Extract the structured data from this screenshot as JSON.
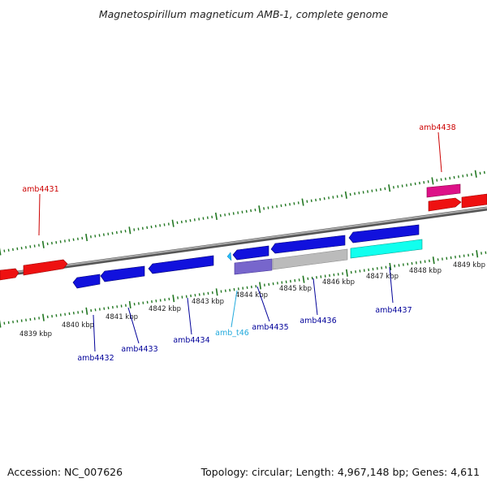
{
  "title": "Magnetospirillum magneticum AMB-1, complete genome",
  "footer": {
    "accession": "Accession: NC_007626",
    "summary": "Topology: circular; Length: 4,967,148 bp; Genes: 4,611"
  },
  "colors": {
    "forward_label": "#cc0000",
    "reverse_label": "#000099",
    "rna_label": "#22aadd",
    "forward_gene": "#ee1111",
    "reverse_gene": "#1111dd",
    "pseudo_gene": "#7766cc",
    "grey_gene": "#bbbbbb",
    "cyan_gene": "#11ffee",
    "magenta_gene": "#dd1188",
    "backbone": "#888888",
    "ticks": "#227722"
  },
  "scale_labels": [
    {
      "text": "4839 kbp"
    },
    {
      "text": "4840 kbp"
    },
    {
      "text": "4841 kbp"
    },
    {
      "text": "4842 kbp"
    },
    {
      "text": "4843 kbp"
    },
    {
      "text": "4844 kbp"
    },
    {
      "text": "4845 kbp"
    },
    {
      "text": "4846 kbp"
    },
    {
      "text": "4847 kbp"
    },
    {
      "text": "4848 kbp"
    },
    {
      "text": "4849 kbp"
    }
  ],
  "gene_labels": [
    {
      "text": "amb4431",
      "strand": "forward"
    },
    {
      "text": "amb4438",
      "strand": "forward"
    },
    {
      "text": "amb4432",
      "strand": "reverse"
    },
    {
      "text": "amb4433",
      "strand": "reverse"
    },
    {
      "text": "amb4434",
      "strand": "reverse"
    },
    {
      "text": "amb_t46",
      "strand": "rna"
    },
    {
      "text": "amb4435",
      "strand": "reverse"
    },
    {
      "text": "amb4436",
      "strand": "reverse"
    },
    {
      "text": "amb4437",
      "strand": "reverse"
    }
  ]
}
